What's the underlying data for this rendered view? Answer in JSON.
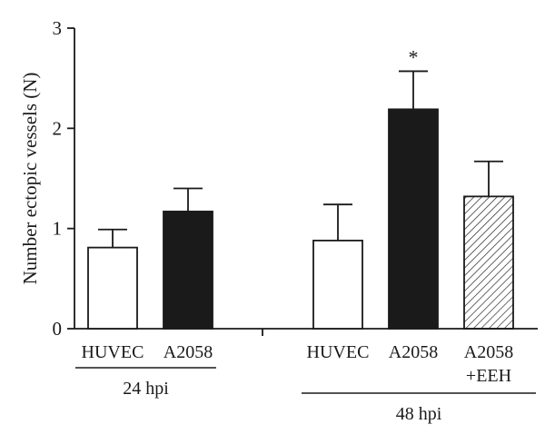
{
  "chart_data": {
    "type": "bar",
    "title": "",
    "xlabel": "",
    "ylabel": "Number ectopic vessels (N)",
    "ylim": [
      0,
      3
    ],
    "yticks": [
      "0",
      "1",
      "2",
      "3"
    ],
    "grid": false,
    "legend": "none",
    "categories": [
      "HUVEC",
      "A2058",
      "HUVEC",
      "A2058",
      "A2058 +EEH"
    ],
    "category_lines": [
      [
        "HUVEC"
      ],
      [
        "A2058"
      ],
      [
        "HUVEC"
      ],
      [
        "A2058"
      ],
      [
        "A2058",
        "+EEH"
      ]
    ],
    "values": [
      0.81,
      1.17,
      0.88,
      2.19,
      1.32
    ],
    "errors": [
      0.18,
      0.23,
      0.36,
      0.38,
      0.35
    ],
    "fills": [
      "white",
      "black",
      "white",
      "black",
      "hatched"
    ],
    "significance": [
      "",
      "",
      "",
      "*",
      ""
    ],
    "groups": [
      {
        "label": "24 hpi",
        "members": [
          0,
          1
        ]
      },
      {
        "label": "48 hpi",
        "members": [
          2,
          3,
          4
        ]
      }
    ],
    "colors": {
      "bar_dark": "#1a1a1a",
      "bar_light": "#ffffff",
      "stroke": "#1a1a1a"
    }
  }
}
